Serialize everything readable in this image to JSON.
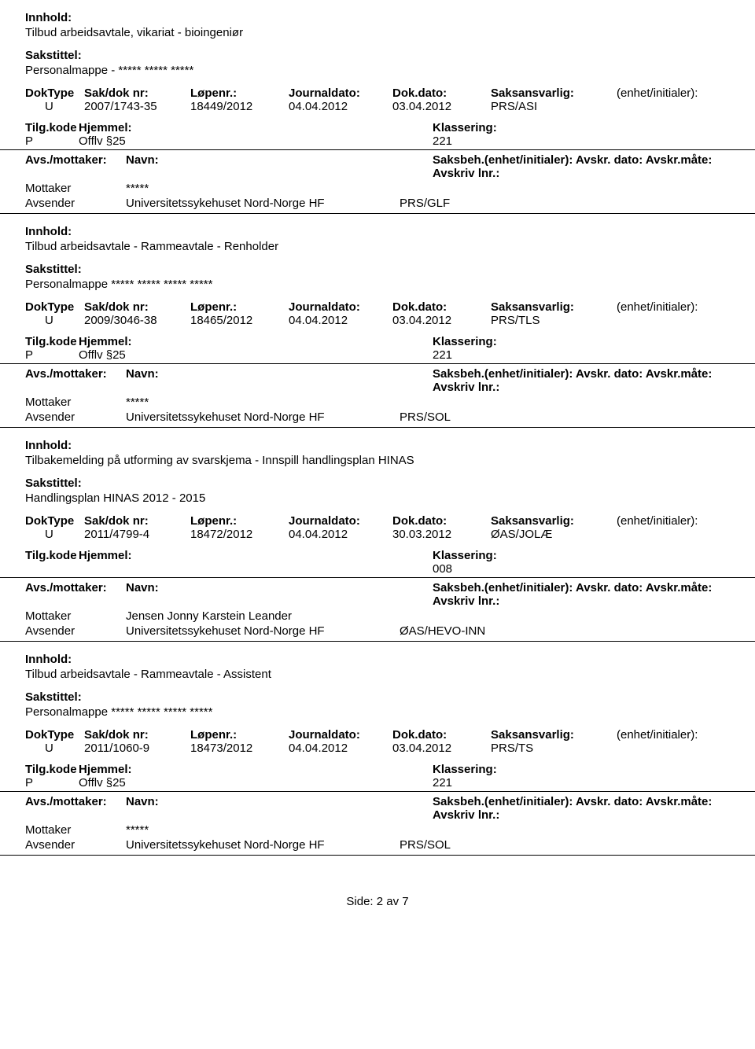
{
  "labels": {
    "innhold": "Innhold:",
    "sakstittel": "Sakstittel:",
    "doktype": "DokType",
    "sakdoknr": "Sak/dok nr:",
    "lopenr": "Løpenr.:",
    "journaldato": "Journaldato:",
    "dokdato": "Dok.dato:",
    "saksansvarlig": "Saksansvarlig:",
    "enhet_initialer": "(enhet/initialer):",
    "tilgkode": "Tilg.kode",
    "hjemmel": "Hjemmel:",
    "klassering": "Klassering:",
    "avsmott": "Avs./mottaker:",
    "navn": "Navn:",
    "saksbeh_row": "Saksbeh.(enhet/initialer): Avskr. dato:  Avskr.måte:  Avskriv lnr.:",
    "mottaker": "Mottaker",
    "avsender": "Avsender"
  },
  "footer": "Side: 2 av 7",
  "entries": [
    {
      "innhold": "Tilbud arbeidsavtale, vikariat - bioingeniør",
      "sakstittel": "Personalmappe - ***** ***** *****",
      "doktype": "U",
      "sakdoknr": "2007/1743-35",
      "lopenr": "18449/2012",
      "journaldato": "04.04.2012",
      "dokdato": "03.04.2012",
      "saksansvarlig": "PRS/ASI",
      "tilgkode": "P",
      "hjemmel": "Offlv §25",
      "klassering": "221",
      "mottaker_navn": "*****",
      "avsender_navn": "Universitetssykehuset Nord-Norge HF",
      "avsender_enhet": "PRS/GLF"
    },
    {
      "innhold": "Tilbud arbeidsavtale - Rammeavtale - Renholder",
      "sakstittel": "Personalmappe ***** ***** ***** *****",
      "doktype": "U",
      "sakdoknr": "2009/3046-38",
      "lopenr": "18465/2012",
      "journaldato": "04.04.2012",
      "dokdato": "03.04.2012",
      "saksansvarlig": "PRS/TLS",
      "tilgkode": "P",
      "hjemmel": "Offlv §25",
      "klassering": "221",
      "mottaker_navn": "*****",
      "avsender_navn": "Universitetssykehuset Nord-Norge HF",
      "avsender_enhet": "PRS/SOL"
    },
    {
      "innhold": "Tilbakemelding på utforming av svarskjema - Innspill handlingsplan HINAS",
      "sakstittel": "Handlingsplan HINAS 2012 - 2015",
      "doktype": "U",
      "sakdoknr": "2011/4799-4",
      "lopenr": "18472/2012",
      "journaldato": "04.04.2012",
      "dokdato": "30.03.2012",
      "saksansvarlig": "ØAS/JOLÆ",
      "tilgkode": "",
      "hjemmel": "",
      "klassering": "008",
      "mottaker_navn": "Jensen Jonny Karstein Leander",
      "avsender_navn": "Universitetssykehuset Nord-Norge HF",
      "avsender_enhet": "ØAS/HEVO-INN"
    },
    {
      "innhold": "Tilbud arbeidsavtale - Rammeavtale - Assistent",
      "sakstittel": "Personalmappe ***** ***** ***** *****",
      "doktype": "U",
      "sakdoknr": "2011/1060-9",
      "lopenr": "18473/2012",
      "journaldato": "04.04.2012",
      "dokdato": "03.04.2012",
      "saksansvarlig": "PRS/TS",
      "tilgkode": "P",
      "hjemmel": "Offlv §25",
      "klassering": "221",
      "mottaker_navn": "*****",
      "avsender_navn": "Universitetssykehuset Nord-Norge HF",
      "avsender_enhet": "PRS/SOL"
    }
  ]
}
